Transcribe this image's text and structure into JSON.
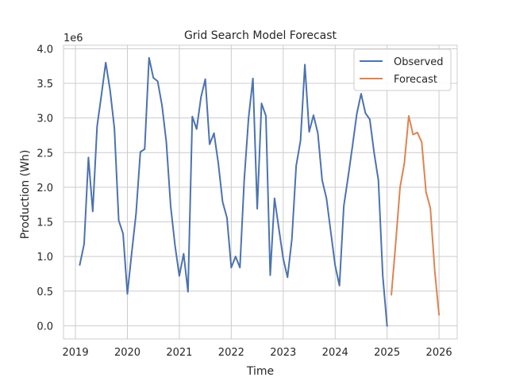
{
  "chart_data": {
    "type": "line",
    "title": "Grid Search Model Forecast",
    "xlabel": "Time",
    "ylabel": "Production (Wh)",
    "y_offset_label": "1e6",
    "xlim": [
      2018.77,
      2026.35
    ],
    "ylim": [
      -0.19,
      4.05
    ],
    "x_ticks": [
      2019,
      2020,
      2021,
      2022,
      2023,
      2024,
      2025,
      2026
    ],
    "x_tick_labels": [
      "2019",
      "2020",
      "2021",
      "2022",
      "2023",
      "2024",
      "2025",
      "2026"
    ],
    "y_ticks": [
      0,
      0.5,
      1,
      1.5,
      2,
      2.5,
      3,
      3.5,
      4
    ],
    "y_tick_labels": [
      "0.0",
      "0.5",
      "1.0",
      "1.5",
      "2.0",
      "2.5",
      "3.0",
      "3.5",
      "4.0"
    ],
    "grid": true,
    "legend_position": "top-right",
    "series": [
      {
        "name": "Observed",
        "color": "#4c72b0",
        "x": [
          2019.083,
          2019.167,
          2019.25,
          2019.333,
          2019.417,
          2019.5,
          2019.583,
          2019.667,
          2019.75,
          2019.833,
          2019.917,
          2020.0,
          2020.083,
          2020.167,
          2020.25,
          2020.333,
          2020.417,
          2020.5,
          2020.583,
          2020.667,
          2020.75,
          2020.833,
          2020.917,
          2021.0,
          2021.083,
          2021.167,
          2021.25,
          2021.333,
          2021.417,
          2021.5,
          2021.583,
          2021.667,
          2021.75,
          2021.833,
          2021.917,
          2022.0,
          2022.083,
          2022.167,
          2022.25,
          2022.333,
          2022.417,
          2022.5,
          2022.583,
          2022.667,
          2022.75,
          2022.833,
          2022.917,
          2023.0,
          2023.083,
          2023.167,
          2023.25,
          2023.333,
          2023.417,
          2023.5,
          2023.583,
          2023.667,
          2023.75,
          2023.833,
          2023.917,
          2024.0,
          2024.083,
          2024.167,
          2024.25,
          2024.333,
          2024.417,
          2024.5,
          2024.583,
          2024.667,
          2024.75,
          2024.833,
          2024.917,
          2025.0
        ],
        "values": [
          0.88,
          1.18,
          2.43,
          1.65,
          2.88,
          3.33,
          3.8,
          3.4,
          2.85,
          1.52,
          1.33,
          0.46,
          1.05,
          1.62,
          2.51,
          2.55,
          3.87,
          3.58,
          3.53,
          3.18,
          2.65,
          1.73,
          1.16,
          0.72,
          1.04,
          0.49,
          3.02,
          2.84,
          3.3,
          3.56,
          2.62,
          2.78,
          2.35,
          1.79,
          1.56,
          0.84,
          1.0,
          0.84,
          2.11,
          3.0,
          3.57,
          1.69,
          3.21,
          3.03,
          0.73,
          1.84,
          1.4,
          0.97,
          0.7,
          1.25,
          2.31,
          2.67,
          3.77,
          2.8,
          3.04,
          2.78,
          2.1,
          1.84,
          1.35,
          0.87,
          0.58,
          1.73,
          2.15,
          2.59,
          3.06,
          3.35,
          3.07,
          2.98,
          2.5,
          2.1,
          0.72,
          0.0
        ]
      },
      {
        "name": "Forecast",
        "color": "#dd8452",
        "x": [
          2025.083,
          2025.167,
          2025.25,
          2025.333,
          2025.417,
          2025.5,
          2025.583,
          2025.667,
          2025.75,
          2025.833,
          2025.917,
          2026.0
        ],
        "values": [
          0.45,
          1.2,
          2.0,
          2.35,
          3.03,
          2.76,
          2.79,
          2.65,
          1.93,
          1.7,
          0.8,
          0.16
        ]
      }
    ]
  }
}
